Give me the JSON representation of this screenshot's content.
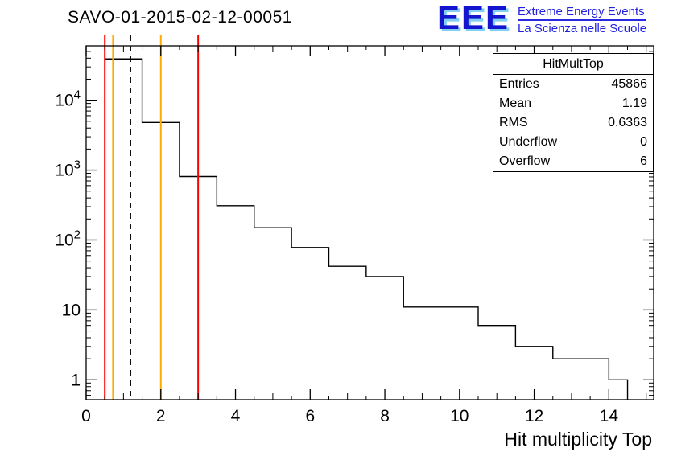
{
  "page": {
    "title": "SAVO-01-2015-02-12-00051"
  },
  "logo": {
    "text": "EEE",
    "line1": "Extreme Energy Events",
    "line2": "La Scienza nelle Scuole",
    "color": "#1515d0",
    "shadow_color": "#7fd0f2"
  },
  "stats": {
    "title": "HitMultTop",
    "rows": [
      {
        "label": "Entries",
        "value": "45866"
      },
      {
        "label": "Mean",
        "value": "1.19"
      },
      {
        "label": "RMS",
        "value": "0.6363"
      },
      {
        "label": "Underflow",
        "value": "0"
      },
      {
        "label": "Overflow",
        "value": "6"
      }
    ]
  },
  "chart_data": {
    "type": "bar",
    "subtype": "step-histogram-log-y",
    "title": "SAVO-01-2015-02-12-00051",
    "xlabel": "Hit multiplicity Top",
    "ylabel": "",
    "x_range": [
      0,
      15.2
    ],
    "y_range": [
      0.52,
      60000
    ],
    "y_scale": "log",
    "grid": false,
    "legend": false,
    "x_ticks": [
      0,
      2,
      4,
      6,
      8,
      10,
      12,
      14
    ],
    "x_minor_step": 0.5,
    "y_ticks": [
      {
        "v": 1,
        "base": "1",
        "exp": ""
      },
      {
        "v": 10,
        "base": "10",
        "exp": ""
      },
      {
        "v": 100,
        "base": "10",
        "exp": "2"
      },
      {
        "v": 1000,
        "base": "10",
        "exp": "3"
      },
      {
        "v": 10000,
        "base": "10",
        "exp": "4"
      }
    ],
    "series": [
      {
        "name": "HitMultTop",
        "color": "#000000",
        "bins": [
          {
            "x1": 0.5,
            "x2": 1.5,
            "count": 39000
          },
          {
            "x1": 1.5,
            "x2": 2.5,
            "count": 4800
          },
          {
            "x1": 2.5,
            "x2": 3.5,
            "count": 810
          },
          {
            "x1": 3.5,
            "x2": 4.5,
            "count": 310
          },
          {
            "x1": 4.5,
            "x2": 5.5,
            "count": 150
          },
          {
            "x1": 5.5,
            "x2": 6.5,
            "count": 78
          },
          {
            "x1": 6.5,
            "x2": 7.5,
            "count": 42
          },
          {
            "x1": 7.5,
            "x2": 8.5,
            "count": 30
          },
          {
            "x1": 8.5,
            "x2": 9.5,
            "count": 11
          },
          {
            "x1": 9.5,
            "x2": 10.5,
            "count": 11
          },
          {
            "x1": 10.5,
            "x2": 11.5,
            "count": 6
          },
          {
            "x1": 11.5,
            "x2": 12.5,
            "count": 3
          },
          {
            "x1": 12.5,
            "x2": 14.0,
            "count": 2
          },
          {
            "x1": 14.0,
            "x2": 14.5,
            "count": 1
          }
        ]
      }
    ],
    "overlay_lines": [
      {
        "x": 0.5,
        "color": "#ff0000",
        "style": "solid"
      },
      {
        "x": 0.72,
        "color": "#ffaa00",
        "style": "solid"
      },
      {
        "x": 1.19,
        "color": "#000000",
        "style": "dashed"
      },
      {
        "x": 2.0,
        "color": "#ffaa00",
        "style": "solid"
      },
      {
        "x": 3.0,
        "color": "#ff0000",
        "style": "solid"
      }
    ],
    "stats_box": {
      "title": "HitMultTop",
      "entries": 45866,
      "mean": 1.19,
      "rms": 0.6363,
      "underflow": 0,
      "overflow": 6
    }
  }
}
